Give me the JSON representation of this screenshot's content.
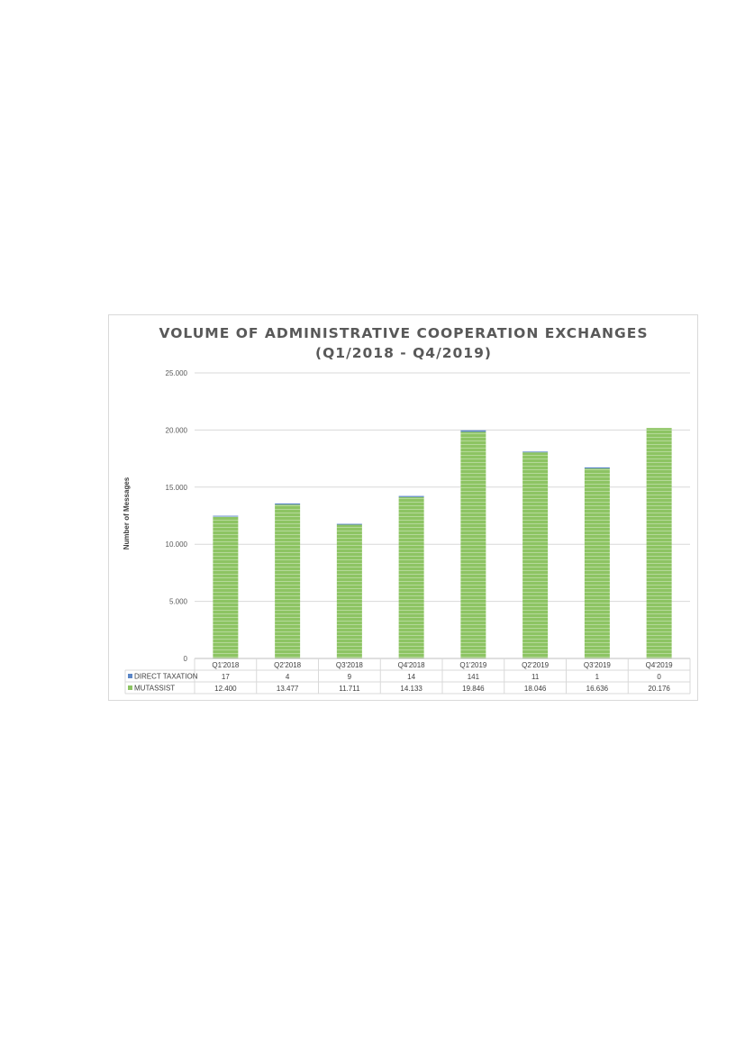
{
  "chart_data": {
    "type": "bar",
    "stacked": true,
    "title": "VOLUME OF ADMINISTRATIVE COOPERATION EXCHANGES",
    "subtitle": "(Q1/2018  - Q4/2019)",
    "ylabel": "Number of Messages",
    "xlabel": "",
    "ylim": [
      0,
      25000
    ],
    "yticks": [
      0,
      5000,
      10000,
      15000,
      20000,
      25000
    ],
    "ytick_labels": [
      "0",
      "5.000",
      "10.000",
      "15.000",
      "20.000",
      "25.000"
    ],
    "grid": true,
    "legend": "data-table-left",
    "categories": [
      "Q1'2018",
      "Q2'2018",
      "Q3'2018",
      "Q4'2018",
      "Q1'2019",
      "Q2'2019",
      "Q3'2019",
      "Q4'2019"
    ],
    "series": [
      {
        "name": "MUTASSIST",
        "color": "#8dc463",
        "values": [
          12400,
          13477,
          11711,
          14133,
          19846,
          18046,
          16636,
          20176
        ],
        "labels": [
          "12.400",
          "13.477",
          "11.711",
          "14.133",
          "19.846",
          "18.046",
          "16.636",
          "20.176"
        ]
      },
      {
        "name": "DIRECT TAXATION",
        "color": "#5b86c7",
        "values": [
          17,
          4,
          9,
          14,
          141,
          11,
          1,
          0
        ],
        "labels": [
          "17",
          "4",
          "9",
          "14",
          "141",
          "11",
          "1",
          "0"
        ]
      }
    ]
  }
}
